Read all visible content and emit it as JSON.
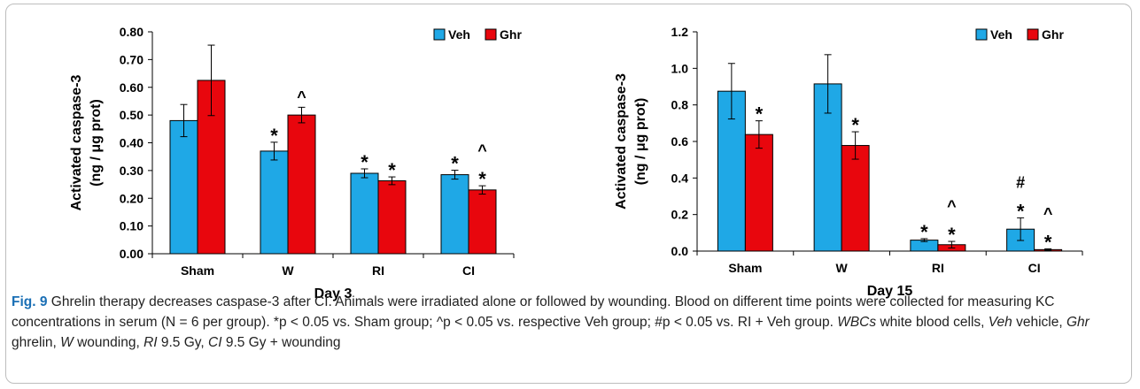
{
  "charts": [
    {
      "type": "bar",
      "xlabel": "Day 3",
      "ylabel_line1": "Activated caspase-3",
      "ylabel_line2": "(ng / μg prot)",
      "ylim": [
        0,
        0.8
      ],
      "yticks": [
        "0.00",
        "0.10",
        "0.20",
        "0.30",
        "0.40",
        "0.50",
        "0.60",
        "0.70",
        "0.80"
      ],
      "categories": [
        "Sham",
        "W",
        "RI",
        "CI"
      ],
      "legend_position": "top-right",
      "series": [
        {
          "name": "Veh",
          "color": "#1fa8e6",
          "values": [
            0.48,
            0.37,
            0.29,
            0.285
          ],
          "errors": [
            0.058,
            0.032,
            0.016,
            0.016
          ]
        },
        {
          "name": "Ghr",
          "color": "#e8060d",
          "values": [
            0.625,
            0.5,
            0.263,
            0.23
          ],
          "errors": [
            0.127,
            0.028,
            0.014,
            0.015
          ]
        }
      ],
      "annotations": [
        {
          "series": 0,
          "category": 1,
          "marks": [
            "*"
          ]
        },
        {
          "series": 1,
          "category": 1,
          "marks": [
            "^"
          ]
        },
        {
          "series": 0,
          "category": 2,
          "marks": [
            "*"
          ]
        },
        {
          "series": 1,
          "category": 2,
          "marks": [
            "*"
          ]
        },
        {
          "series": 0,
          "category": 3,
          "marks": [
            "*"
          ]
        },
        {
          "series": 1,
          "category": 3,
          "marks": [
            "*",
            "^"
          ]
        }
      ]
    },
    {
      "type": "bar",
      "xlabel": "Day 15",
      "ylabel_line1": "Activated caspase-3",
      "ylabel_line2": "(ng / μg prot)",
      "ylim": [
        0,
        1.2
      ],
      "yticks": [
        "0.0",
        "0.2",
        "0.4",
        "0.6",
        "0.8",
        "1.0",
        "1.2"
      ],
      "categories": [
        "Sham",
        "W",
        "RI",
        "CI"
      ],
      "legend_position": "top-right",
      "series": [
        {
          "name": "Veh",
          "color": "#1fa8e6",
          "values": [
            0.875,
            0.915,
            0.06,
            0.12
          ],
          "errors": [
            0.152,
            0.16,
            0.008,
            0.062
          ]
        },
        {
          "name": "Ghr",
          "color": "#e8060d",
          "values": [
            0.638,
            0.578,
            0.035,
            0.008
          ],
          "errors": [
            0.075,
            0.075,
            0.018,
            0.004
          ]
        }
      ],
      "annotations": [
        {
          "series": 1,
          "category": 0,
          "marks": [
            "*"
          ]
        },
        {
          "series": 1,
          "category": 1,
          "marks": [
            "*"
          ]
        },
        {
          "series": 0,
          "category": 2,
          "marks": [
            "*"
          ]
        },
        {
          "series": 1,
          "category": 2,
          "marks": [
            "*",
            "^"
          ]
        },
        {
          "series": 0,
          "category": 3,
          "marks": [
            "*",
            "#"
          ]
        },
        {
          "series": 1,
          "category": 3,
          "marks": [
            "*",
            "^"
          ]
        }
      ]
    }
  ],
  "caption": {
    "label": "Fig. 9",
    "text": "Ghrelin therapy decreases caspase-3 after CI. Animals were irradiated alone or followed by wounding. Blood on different time points were collected for measuring KC concentrations in serum (N = 6 per group). *p < 0.05 vs. Sham group; ^p < 0.05 vs. respective Veh group; #p < 0.05 vs. RI + Veh group.",
    "abbr_wbcs": "WBCs",
    "def_wbcs": " white blood cells, ",
    "abbr_veh": "Veh",
    "def_veh": " vehicle, ",
    "abbr_ghr": "Ghr",
    "def_ghr": " ghrelin, ",
    "abbr_w": "W",
    "def_w": " wounding, ",
    "abbr_ri": "RI",
    "def_ri": " 9.5 Gy, ",
    "abbr_ci": "CI",
    "def_ci": " 9.5 Gy + wounding"
  }
}
